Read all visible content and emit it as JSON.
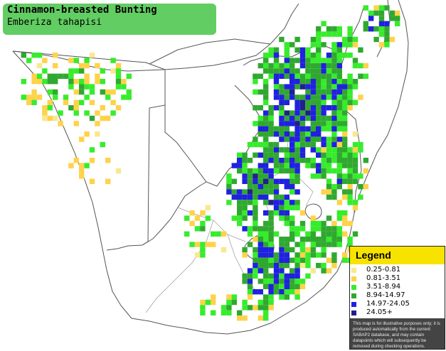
{
  "title": "Cinnamon-breasted Bunting",
  "subtitle": "Emberiza tahapisi",
  "legend": {
    "heading": "Legend",
    "items": [
      {
        "label": "0.25-0.81",
        "color": "#f8e890"
      },
      {
        "label": "0.81-3.51",
        "color": "#ffd24a"
      },
      {
        "label": "3.51-8.94",
        "color": "#36ec2c"
      },
      {
        "label": "8.94-14.97",
        "color": "#30a830"
      },
      {
        "label": "14.97-24.05",
        "color": "#2020e0"
      },
      {
        "label": "24.05+",
        "color": "#20208a"
      }
    ],
    "disclaimer": "This map is for illustrative purposes only; it is produced automatically from the current SABAP2 database, and may contain datapoints which will subsequently be removed during checking operations."
  },
  "map_colors": {
    "land": "#ffffff",
    "border": "#444444",
    "grid": "#dddddd"
  }
}
